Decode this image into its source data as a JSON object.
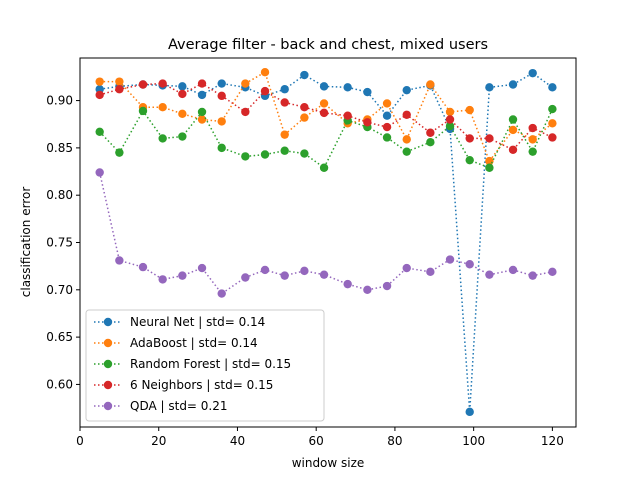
{
  "chart_data": {
    "type": "line",
    "title": "Average filter - back and chest, mixed users",
    "xlabel": "window size",
    "ylabel": "classification error",
    "xlim": [
      0,
      126
    ],
    "ylim": [
      0.555,
      0.945
    ],
    "xticks": [
      0,
      20,
      40,
      60,
      80,
      100,
      120
    ],
    "yticks": [
      0.6,
      0.65,
      0.7,
      0.75,
      0.8,
      0.85,
      0.9
    ],
    "legend_position": "lower-left",
    "grid": false,
    "x": [
      5,
      10,
      16,
      21,
      26,
      31,
      36,
      42,
      47,
      52,
      57,
      62,
      68,
      73,
      78,
      83,
      89,
      94,
      99,
      104,
      110,
      115,
      120
    ],
    "series": [
      {
        "name": "Neural Net | std= 0.14",
        "color": "#1f77b4",
        "values": [
          0.912,
          0.915,
          0.917,
          0.916,
          0.915,
          0.906,
          0.918,
          0.914,
          0.905,
          0.912,
          0.927,
          0.915,
          0.914,
          0.909,
          0.884,
          0.911,
          0.916,
          0.87,
          0.571,
          0.914,
          0.917,
          0.929,
          0.914
        ]
      },
      {
        "name": "AdaBoost | std= 0.14",
        "color": "#ff7f0e",
        "values": [
          0.92,
          0.92,
          0.893,
          0.893,
          0.886,
          0.88,
          0.878,
          0.918,
          0.93,
          0.864,
          0.882,
          0.897,
          0.876,
          0.88,
          0.897,
          0.859,
          0.917,
          0.888,
          0.89,
          0.836,
          0.869,
          0.859,
          0.876
        ]
      },
      {
        "name": "Random Forest | std= 0.15",
        "color": "#2ca02c",
        "values": [
          0.867,
          0.845,
          0.889,
          0.86,
          0.862,
          0.888,
          0.85,
          0.841,
          0.843,
          0.847,
          0.844,
          0.829,
          0.879,
          0.872,
          0.861,
          0.846,
          0.856,
          0.873,
          0.837,
          0.829,
          0.88,
          0.846,
          0.891
        ]
      },
      {
        "name": "6 Neighbors | std= 0.15",
        "color": "#d62728",
        "values": [
          0.906,
          0.912,
          0.917,
          0.918,
          0.907,
          0.918,
          0.905,
          0.888,
          0.91,
          0.898,
          0.893,
          0.887,
          0.884,
          0.877,
          0.872,
          0.885,
          0.866,
          0.88,
          0.86,
          0.86,
          0.848,
          0.871,
          0.861
        ]
      },
      {
        "name": "QDA | std= 0.21",
        "color": "#9467bd",
        "values": [
          0.824,
          0.731,
          0.724,
          0.711,
          0.715,
          0.723,
          0.696,
          0.713,
          0.721,
          0.715,
          0.72,
          0.716,
          0.706,
          0.7,
          0.704,
          0.723,
          0.719,
          0.732,
          0.727,
          0.716,
          0.721,
          0.715,
          0.719
        ]
      }
    ]
  }
}
